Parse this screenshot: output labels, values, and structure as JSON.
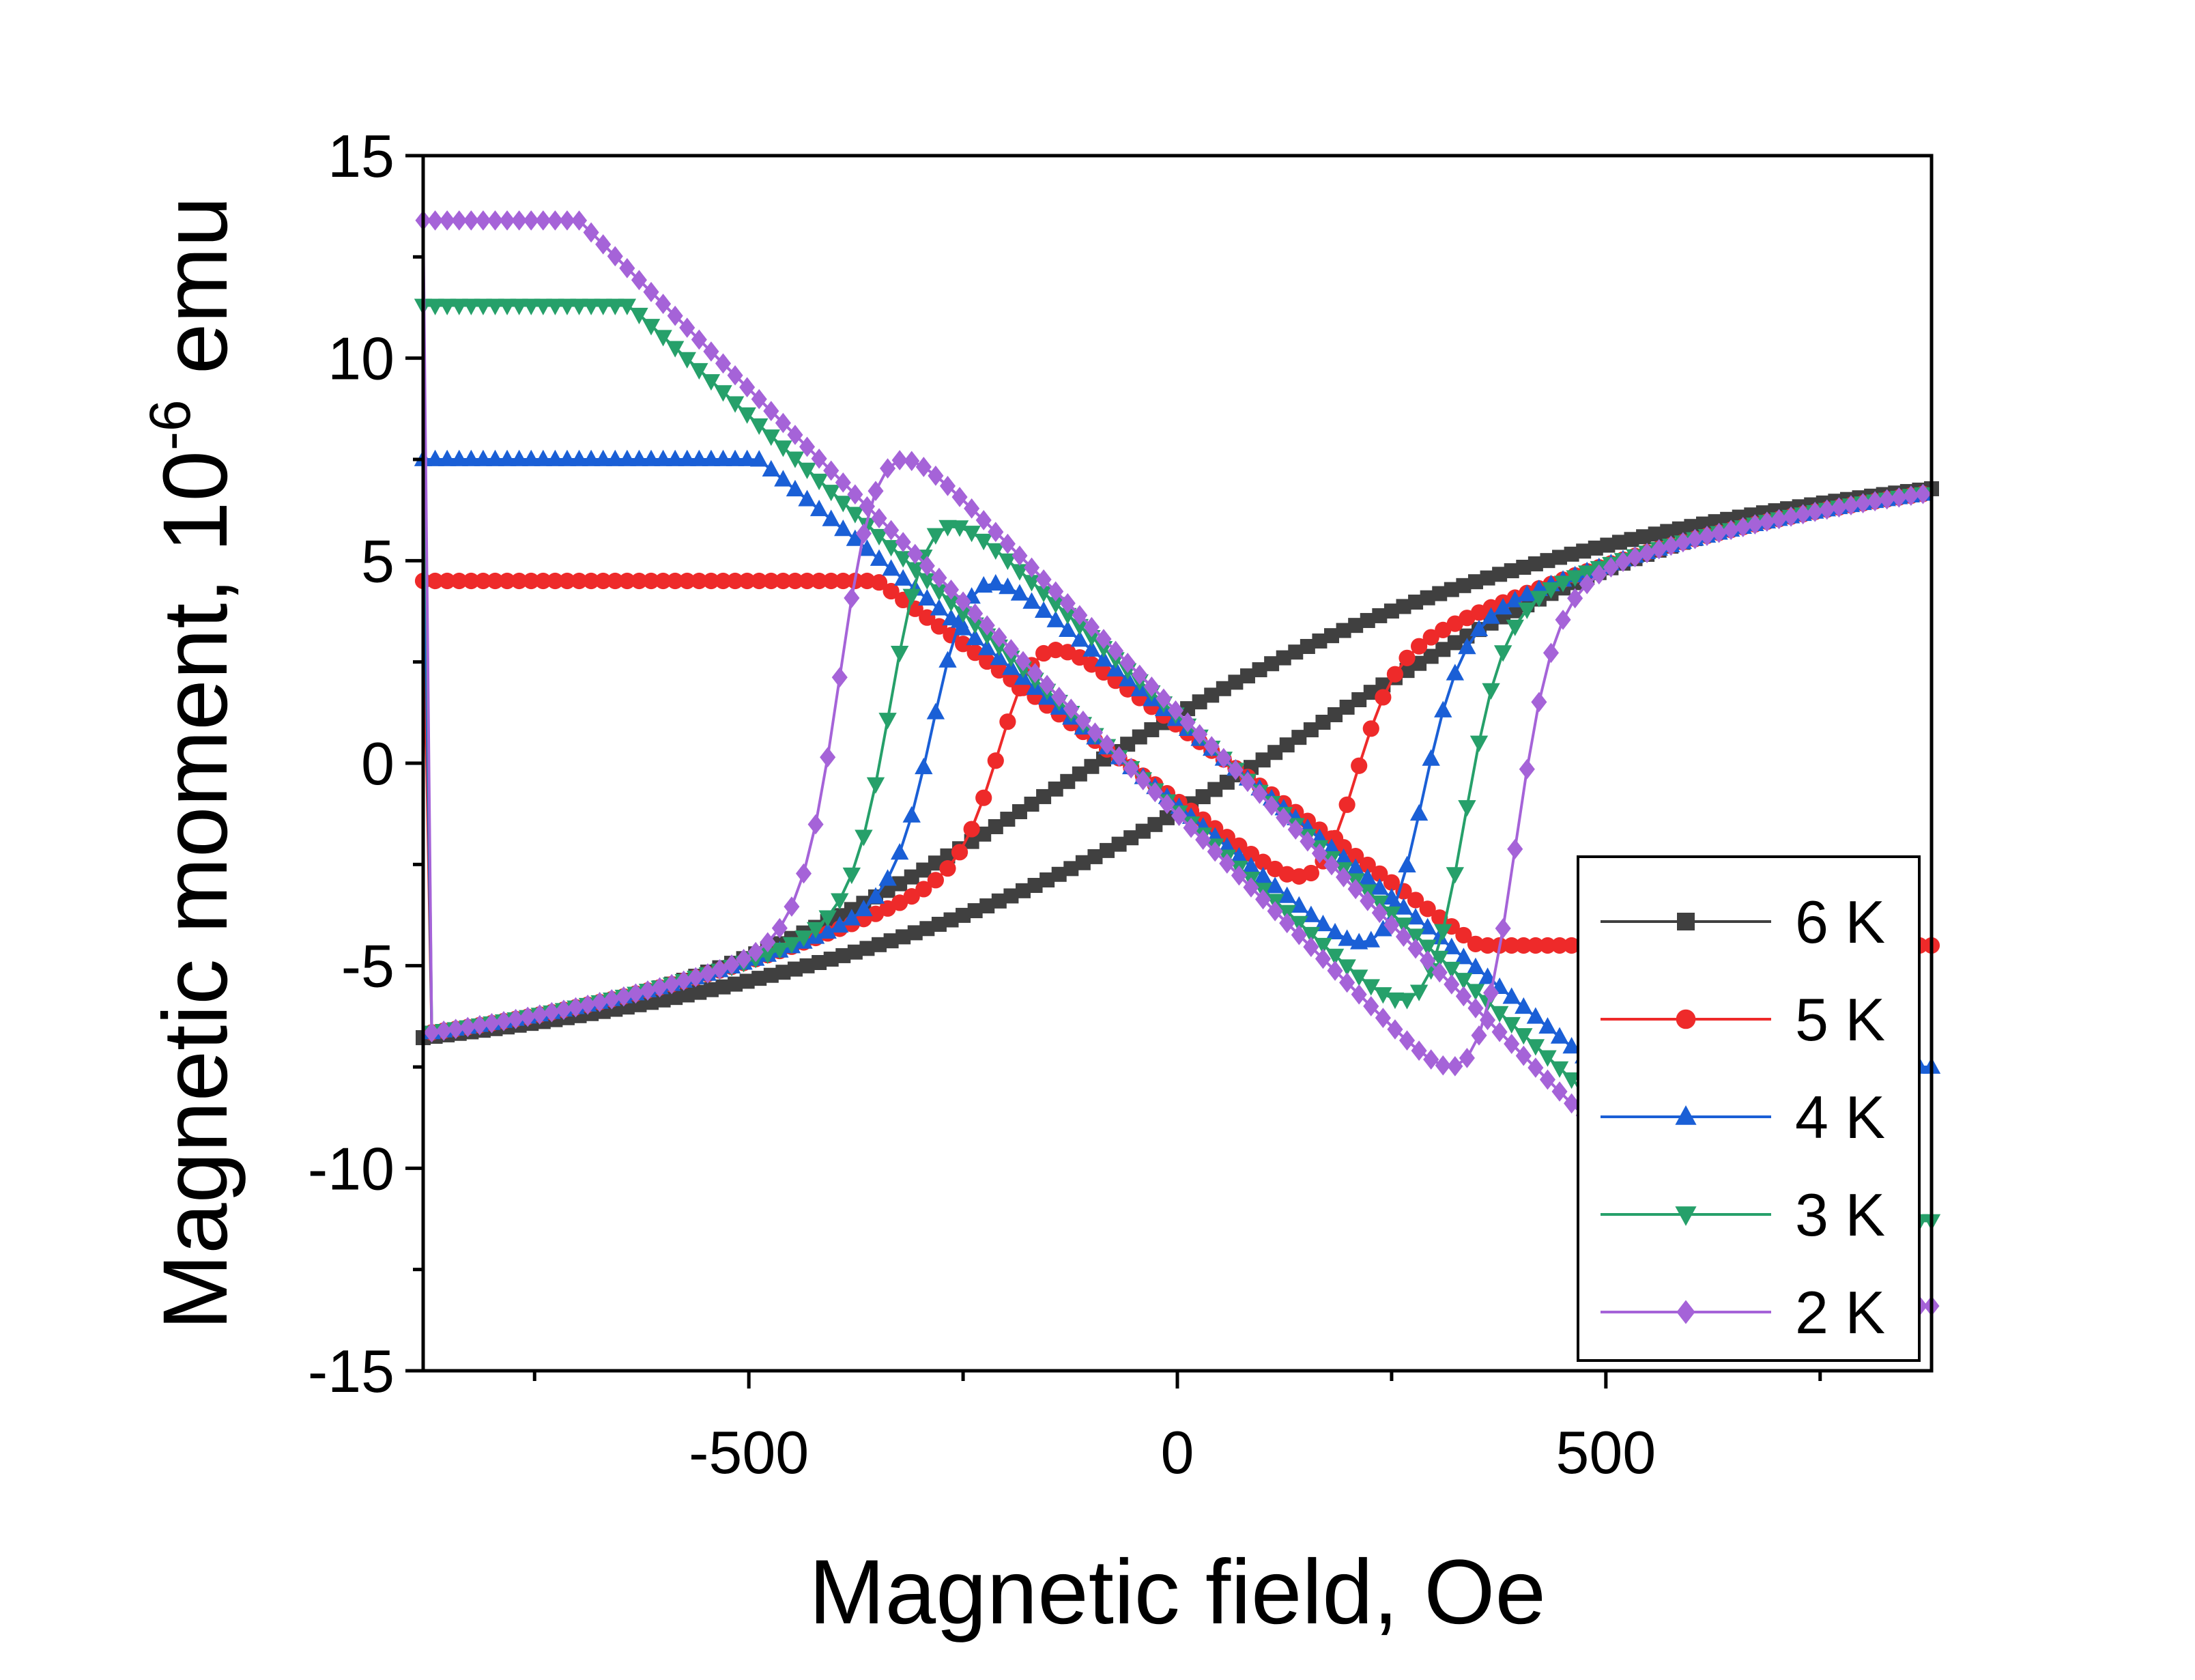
{
  "chart_data": {
    "type": "line",
    "title": "",
    "xlabel": "Magnetic field, Oe",
    "ylabel": "Magnetic moment, 10",
    "ylabel_exponent": "-6",
    "ylabel_suffix": " emu",
    "xlim": [
      -880,
      880
    ],
    "ylim": [
      -15,
      15
    ],
    "x_ticks": [
      -500,
      0,
      500
    ],
    "x_tick_labels": [
      "-500",
      "0",
      "500"
    ],
    "y_ticks": [
      -15,
      -10,
      -5,
      0,
      5,
      10,
      15
    ],
    "y_tick_labels": [
      "-15",
      "-10",
      "-5",
      "0",
      "5",
      "10",
      "15"
    ],
    "grid": false,
    "legend_position": "bottom-right",
    "series": [
      {
        "name": "6 K",
        "color": "#404040",
        "marker": "square",
        "Hc": 30,
        "peak": 0,
        "peakH": 0,
        "slope": 0.0125
      },
      {
        "name": "5 K",
        "color": "#ee2a2a",
        "marker": "circle",
        "Hc": 145,
        "peak": 4.5,
        "peakH": 200,
        "slope": 0.0155
      },
      {
        "name": "4 K",
        "color": "#1a5fd6",
        "marker": "triangle-up",
        "Hc": 245,
        "peak": 7.5,
        "peakH": 280,
        "slope": 0.0175
      },
      {
        "name": "3 K",
        "color": "#26a06a",
        "marker": "triangle-down",
        "Hc": 300,
        "peak": 11.3,
        "peakH": 330,
        "slope": 0.0195
      },
      {
        "name": "2 K",
        "color": "#a563d8",
        "marker": "diamond",
        "Hc": 365,
        "peak": 13.4,
        "peakH": 390,
        "slope": 0.021
      }
    ]
  }
}
